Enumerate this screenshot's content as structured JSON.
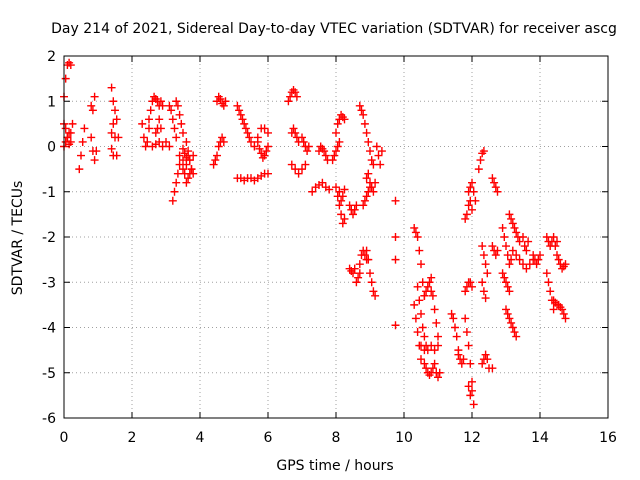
{
  "chart_data": {
    "type": "scatter",
    "title": "Day 214 of 2021, Sidereal Day-to-day VTEC variation (SDTVAR) for receiver ascg",
    "xlabel": "GPS time / hours",
    "ylabel": "SDTVAR / TECUs",
    "xlim": [
      0,
      16
    ],
    "ylim": [
      -6,
      2
    ],
    "xticks": [
      "0",
      "2",
      "4",
      "6",
      "8",
      "10",
      "12",
      "14",
      "16"
    ],
    "yticks": [
      "-6",
      "-5",
      "-4",
      "-3",
      "-2",
      "-1",
      "0",
      "1",
      "2"
    ],
    "grid": true,
    "marker": "+",
    "color": "#ff0000",
    "tracks": [
      {
        "x": [
          0.0,
          0.05,
          0.1,
          0.15,
          0.2
        ],
        "y": [
          1.1,
          1.5,
          1.8,
          1.85,
          1.8
        ]
      },
      {
        "x": [
          0.0,
          0.05,
          0.1,
          0.15,
          0.2,
          0.25
        ],
        "y": [
          0.5,
          0.4,
          0.2,
          0.05,
          0.3,
          0.5
        ]
      },
      {
        "x": [
          0.0,
          0.05,
          0.1,
          0.15,
          0.2
        ],
        "y": [
          0.0,
          0.1,
          0.2,
          0.3,
          0.1
        ]
      },
      {
        "x": [
          0.45,
          0.5,
          0.55,
          0.6
        ],
        "y": [
          -0.5,
          -0.2,
          0.1,
          0.4
        ]
      },
      {
        "x": [
          0.8,
          0.85,
          0.9,
          0.95
        ],
        "y": [
          0.2,
          -0.1,
          -0.3,
          -0.1
        ]
      },
      {
        "x": [
          0.8,
          0.85,
          0.9
        ],
        "y": [
          0.9,
          0.8,
          1.1
        ]
      },
      {
        "x": [
          1.4,
          1.45,
          1.5,
          1.55,
          1.6
        ],
        "y": [
          1.3,
          1.0,
          0.8,
          0.6,
          0.2
        ]
      },
      {
        "x": [
          1.4,
          1.45,
          1.5,
          1.55
        ],
        "y": [
          0.3,
          0.5,
          0.2,
          -0.2
        ]
      },
      {
        "x": [
          1.4,
          1.45
        ],
        "y": [
          -0.05,
          -0.2
        ]
      },
      {
        "x": [
          2.3,
          2.35,
          2.4,
          2.45,
          2.5
        ],
        "y": [
          0.5,
          0.2,
          0.0,
          0.1,
          0.4
        ]
      },
      {
        "x": [
          2.5,
          2.55,
          2.6,
          2.65,
          2.7,
          2.75,
          2.8,
          2.85,
          2.9
        ],
        "y": [
          0.6,
          0.8,
          1.0,
          1.1,
          1.05,
          1.0,
          0.9,
          1.0,
          0.9
        ]
      },
      {
        "x": [
          2.6,
          2.7,
          2.8,
          2.9,
          3.0,
          3.1
        ],
        "y": [
          0.0,
          0.05,
          0.1,
          0.0,
          0.1,
          0.0
        ]
      },
      {
        "x": [
          2.7,
          2.75,
          2.8,
          2.85
        ],
        "y": [
          0.3,
          0.4,
          0.6,
          0.4
        ]
      },
      {
        "x": [
          3.1,
          3.15,
          3.2,
          3.25,
          3.3
        ],
        "y": [
          0.9,
          0.8,
          0.6,
          0.4,
          0.2
        ]
      },
      {
        "x": [
          3.2,
          3.25,
          3.3,
          3.35,
          3.4
        ],
        "y": [
          -1.2,
          -1.0,
          -0.8,
          -0.6,
          -0.4
        ]
      },
      {
        "x": [
          3.3,
          3.35,
          3.4,
          3.45,
          3.5
        ],
        "y": [
          1.0,
          0.9,
          0.7,
          0.5,
          0.3
        ]
      },
      {
        "x": [
          3.4,
          3.5,
          3.6,
          3.7,
          3.8
        ],
        "y": [
          -0.2,
          -0.3,
          -0.4,
          -0.3,
          -0.2
        ]
      },
      {
        "x": [
          3.5,
          3.55,
          3.6,
          3.65,
          3.7,
          3.75
        ],
        "y": [
          -0.5,
          -0.6,
          -0.8,
          -0.7,
          -0.6,
          -0.5
        ]
      },
      {
        "x": [
          3.6,
          3.65,
          3.7,
          3.75,
          3.8
        ],
        "y": [
          0.1,
          -0.1,
          -0.3,
          -0.5,
          -0.6
        ]
      },
      {
        "x": [
          3.5,
          3.55,
          3.6,
          3.65
        ],
        "y": [
          -0.05,
          -0.15,
          -0.25,
          -0.2
        ]
      },
      {
        "x": [
          4.4,
          4.45,
          4.5,
          4.55,
          4.6,
          4.65,
          4.7
        ],
        "y": [
          -0.4,
          -0.3,
          -0.2,
          0.0,
          0.1,
          0.2,
          0.1
        ]
      },
      {
        "x": [
          4.5,
          4.55,
          4.6,
          4.65,
          4.7,
          4.75
        ],
        "y": [
          1.0,
          1.1,
          1.05,
          0.95,
          0.9,
          1.0
        ]
      },
      {
        "x": [
          5.1,
          5.15,
          5.2,
          5.25,
          5.3,
          5.35,
          5.4,
          5.45,
          5.5
        ],
        "y": [
          0.9,
          0.8,
          0.7,
          0.6,
          0.5,
          0.4,
          0.3,
          0.2,
          0.1
        ]
      },
      {
        "x": [
          5.1,
          5.2,
          5.3,
          5.4,
          5.5,
          5.6,
          5.7,
          5.8,
          5.9,
          6.0
        ],
        "y": [
          -0.7,
          -0.7,
          -0.75,
          -0.7,
          -0.7,
          -0.75,
          -0.7,
          -0.65,
          -0.6,
          -0.6
        ]
      },
      {
        "x": [
          5.6,
          5.7,
          5.8,
          5.9,
          6.0
        ],
        "y": [
          0.0,
          0.2,
          0.4,
          0.4,
          0.3
        ]
      },
      {
        "x": [
          5.7,
          5.75,
          5.8,
          5.85,
          5.9,
          5.95,
          6.0
        ],
        "y": [
          0.1,
          -0.05,
          -0.15,
          -0.25,
          -0.2,
          -0.1,
          0.0
        ]
      },
      {
        "x": [
          6.6,
          6.65,
          6.7,
          6.75,
          6.8,
          6.85
        ],
        "y": [
          1.0,
          1.1,
          1.2,
          1.25,
          1.2,
          1.1
        ]
      },
      {
        "x": [
          6.7,
          6.75,
          6.8,
          6.85,
          6.9
        ],
        "y": [
          0.3,
          0.4,
          0.3,
          0.2,
          0.1
        ]
      },
      {
        "x": [
          6.7,
          6.8,
          6.9,
          7.0,
          7.1
        ],
        "y": [
          -0.4,
          -0.5,
          -0.6,
          -0.5,
          -0.4
        ]
      },
      {
        "x": [
          7.0,
          7.05,
          7.1,
          7.15,
          7.2
        ],
        "y": [
          0.2,
          0.1,
          0.0,
          -0.1,
          0.0
        ]
      },
      {
        "x": [
          7.3,
          7.4,
          7.5,
          7.6,
          7.7,
          7.8
        ],
        "y": [
          -1.0,
          -0.9,
          -0.85,
          -0.8,
          -0.9,
          -0.95
        ]
      },
      {
        "x": [
          7.5,
          7.55,
          7.6,
          7.65,
          7.7,
          7.75
        ],
        "y": [
          -0.1,
          0.0,
          -0.05,
          -0.1,
          -0.2,
          -0.3
        ]
      },
      {
        "x": [
          7.9,
          7.95,
          8.0,
          8.05,
          8.1
        ],
        "y": [
          -0.3,
          -0.2,
          -0.1,
          0.0,
          0.1
        ]
      },
      {
        "x": [
          8.0,
          8.05,
          8.1,
          8.15,
          8.2,
          8.25
        ],
        "y": [
          0.3,
          0.5,
          0.6,
          0.7,
          0.65,
          0.6
        ]
      },
      {
        "x": [
          8.0,
          8.05,
          8.1,
          8.15,
          8.2,
          8.25
        ],
        "y": [
          -0.9,
          -1.1,
          -1.3,
          -1.5,
          -1.7,
          -1.6
        ]
      },
      {
        "x": [
          8.1,
          8.15,
          8.2,
          8.25
        ],
        "y": [
          -1.0,
          -1.2,
          -1.1,
          -0.95
        ]
      },
      {
        "x": [
          8.4,
          8.45,
          8.5,
          8.55,
          8.6
        ],
        "y": [
          -1.3,
          -1.4,
          -1.5,
          -1.4,
          -1.3
        ]
      },
      {
        "x": [
          8.4,
          8.45,
          8.5,
          8.55
        ],
        "y": [
          -2.7,
          -2.75,
          -2.8,
          -2.7
        ]
      },
      {
        "x": [
          8.7,
          8.75,
          8.8,
          8.85,
          8.9,
          8.95,
          9.0,
          9.05,
          9.1
        ],
        "y": [
          0.9,
          0.8,
          0.7,
          0.5,
          0.3,
          0.1,
          -0.1,
          -0.3,
          -0.4
        ]
      },
      {
        "x": [
          8.7,
          8.75,
          8.8,
          8.85,
          8.9
        ],
        "y": [
          -2.6,
          -2.4,
          -2.3,
          -2.4,
          -2.5
        ]
      },
      {
        "x": [
          8.9,
          8.95,
          9.0,
          9.05,
          9.1,
          9.15
        ],
        "y": [
          -2.3,
          -2.5,
          -2.8,
          -3.0,
          -3.2,
          -3.3
        ]
      },
      {
        "x": [
          8.9,
          8.95,
          9.0,
          9.05,
          9.1,
          9.15
        ],
        "y": [
          -0.7,
          -0.6,
          -0.8,
          -0.9,
          -1.0,
          -0.8
        ]
      },
      {
        "x": [
          8.8,
          8.85,
          8.9,
          8.95,
          9.0
        ],
        "y": [
          -1.3,
          -1.2,
          -1.1,
          -1.0,
          -0.9
        ]
      },
      {
        "x": [
          8.6,
          8.65,
          8.7
        ],
        "y": [
          -3.0,
          -2.9,
          -2.8
        ]
      },
      {
        "x": [
          9.2,
          9.25,
          9.3,
          9.35
        ],
        "y": [
          0.0,
          -0.2,
          -0.4,
          -0.1
        ]
      },
      {
        "x": [
          9.75,
          9.75,
          9.75,
          9.75
        ],
        "y": [
          -1.2,
          -2.0,
          -2.5,
          -3.95
        ]
      },
      {
        "x": [
          10.3,
          10.35,
          10.4,
          10.45,
          10.5,
          10.55,
          10.6
        ],
        "y": [
          -1.8,
          -1.9,
          -2.0,
          -2.3,
          -2.6,
          -3.0,
          -3.3
        ]
      },
      {
        "x": [
          10.3,
          10.35,
          10.4,
          10.45,
          10.5
        ],
        "y": [
          -3.5,
          -3.8,
          -4.1,
          -4.4,
          -4.7
        ]
      },
      {
        "x": [
          10.4,
          10.45,
          10.5,
          10.55,
          10.6,
          10.65
        ],
        "y": [
          -3.1,
          -3.4,
          -3.7,
          -4.0,
          -4.2,
          -4.4
        ]
      },
      {
        "x": [
          10.5,
          10.6,
          10.7,
          10.8,
          10.9,
          11.0
        ],
        "y": [
          -4.4,
          -4.5,
          -4.5,
          -4.4,
          -4.5,
          -4.4
        ]
      },
      {
        "x": [
          10.6,
          10.65,
          10.7,
          10.75,
          10.8,
          10.85
        ],
        "y": [
          -4.8,
          -4.9,
          -5.0,
          -5.05,
          -5.0,
          -4.9
        ]
      },
      {
        "x": [
          10.6,
          10.65,
          10.7,
          10.75,
          10.8
        ],
        "y": [
          -3.3,
          -3.2,
          -3.1,
          -3.0,
          -3.2
        ]
      },
      {
        "x": [
          10.8,
          10.85,
          10.9,
          10.95,
          11.0
        ],
        "y": [
          -2.9,
          -3.3,
          -3.6,
          -3.9,
          -4.2
        ]
      },
      {
        "x": [
          10.9,
          10.95,
          11.0,
          11.05
        ],
        "y": [
          -4.8,
          -5.0,
          -5.1,
          -5.0
        ]
      },
      {
        "x": [
          11.4,
          11.45,
          11.5,
          11.55,
          11.6
        ],
        "y": [
          -3.7,
          -3.8,
          -4.0,
          -4.2,
          -4.5
        ]
      },
      {
        "x": [
          11.6,
          11.65,
          11.7,
          11.75
        ],
        "y": [
          -4.6,
          -4.7,
          -4.8,
          -4.7
        ]
      },
      {
        "x": [
          11.8,
          11.85,
          11.9,
          11.95,
          12.0
        ],
        "y": [
          -1.6,
          -1.5,
          -1.3,
          -1.2,
          -1.4
        ]
      },
      {
        "x": [
          11.9,
          11.95,
          12.0,
          12.05,
          12.1
        ],
        "y": [
          -1.0,
          -0.9,
          -0.8,
          -1.0,
          -1.2
        ]
      },
      {
        "x": [
          11.8,
          11.85,
          11.9,
          11.95,
          12.0
        ],
        "y": [
          -3.2,
          -3.1,
          -3.0,
          -3.0,
          -3.1
        ]
      },
      {
        "x": [
          11.8,
          11.85,
          11.9,
          11.95,
          12.0,
          12.05
        ],
        "y": [
          -3.8,
          -4.1,
          -4.4,
          -4.8,
          -5.2,
          -5.7
        ]
      },
      {
        "x": [
          11.9,
          11.95,
          12.0
        ],
        "y": [
          -5.3,
          -5.5,
          -5.4
        ]
      },
      {
        "x": [
          12.2,
          12.25,
          12.3,
          12.35
        ],
        "y": [
          -0.5,
          -0.3,
          -0.15,
          -0.1
        ]
      },
      {
        "x": [
          12.3,
          12.35,
          12.4,
          12.45
        ],
        "y": [
          -2.2,
          -2.4,
          -2.6,
          -2.8
        ]
      },
      {
        "x": [
          12.3,
          12.35,
          12.4
        ],
        "y": [
          -3.0,
          -3.2,
          -3.35
        ]
      },
      {
        "x": [
          12.3,
          12.35,
          12.4,
          12.45,
          12.5
        ],
        "y": [
          -4.8,
          -4.7,
          -4.6,
          -4.7,
          -4.9
        ]
      },
      {
        "x": [
          12.6,
          12.65,
          12.7,
          12.75
        ],
        "y": [
          -0.7,
          -0.8,
          -0.9,
          -1.0
        ]
      },
      {
        "x": [
          12.6,
          12.65,
          12.7,
          12.75
        ],
        "y": [
          -2.2,
          -2.3,
          -2.4,
          -2.3
        ]
      },
      {
        "x": [
          12.6
        ],
        "y": [
          -4.9
        ]
      },
      {
        "x": [
          12.9,
          12.95,
          13.0,
          13.05,
          13.1
        ],
        "y": [
          -2.8,
          -2.9,
          -3.0,
          -3.1,
          -3.2
        ]
      },
      {
        "x": [
          12.9,
          12.95,
          13.0,
          13.05,
          13.1,
          13.15,
          13.2
        ],
        "y": [
          -1.8,
          -2.0,
          -2.2,
          -2.4,
          -2.6,
          -2.5,
          -2.3
        ]
      },
      {
        "x": [
          13.0,
          13.05,
          13.1,
          13.15,
          13.2,
          13.25,
          13.3
        ],
        "y": [
          -3.6,
          -3.7,
          -3.8,
          -3.9,
          -4.0,
          -4.1,
          -4.2
        ]
      },
      {
        "x": [
          13.1,
          13.15,
          13.2,
          13.25,
          13.3,
          13.35,
          13.4
        ],
        "y": [
          -1.5,
          -1.6,
          -1.7,
          -1.8,
          -1.9,
          -2.0,
          -2.1
        ]
      },
      {
        "x": [
          13.3,
          13.4,
          13.5,
          13.6,
          13.7,
          13.8
        ],
        "y": [
          -2.4,
          -2.5,
          -2.6,
          -2.7,
          -2.6,
          -2.5
        ]
      },
      {
        "x": [
          13.5,
          13.55,
          13.6,
          13.65
        ],
        "y": [
          -2.0,
          -2.2,
          -2.3,
          -2.1
        ]
      },
      {
        "x": [
          13.8,
          13.85,
          13.9,
          13.95,
          14.0
        ],
        "y": [
          -2.4,
          -2.5,
          -2.6,
          -2.5,
          -2.4
        ]
      },
      {
        "x": [
          14.2,
          14.25,
          14.3,
          14.35,
          14.4,
          14.45,
          14.5
        ],
        "y": [
          -2.0,
          -2.1,
          -2.2,
          -2.1,
          -2.0,
          -2.2,
          -2.1
        ]
      },
      {
        "x": [
          14.2,
          14.25,
          14.3,
          14.35,
          14.4
        ],
        "y": [
          -2.8,
          -3.0,
          -3.2,
          -3.4,
          -3.6
        ]
      },
      {
        "x": [
          14.4,
          14.45,
          14.5,
          14.55,
          14.6,
          14.65,
          14.7,
          14.75
        ],
        "y": [
          -3.4,
          -3.45,
          -3.5,
          -3.5,
          -3.55,
          -3.6,
          -3.7,
          -3.8
        ]
      },
      {
        "x": [
          14.5,
          14.55,
          14.6,
          14.65,
          14.7,
          14.75
        ],
        "y": [
          -2.4,
          -2.5,
          -2.6,
          -2.7,
          -2.65,
          -2.6
        ]
      }
    ]
  }
}
